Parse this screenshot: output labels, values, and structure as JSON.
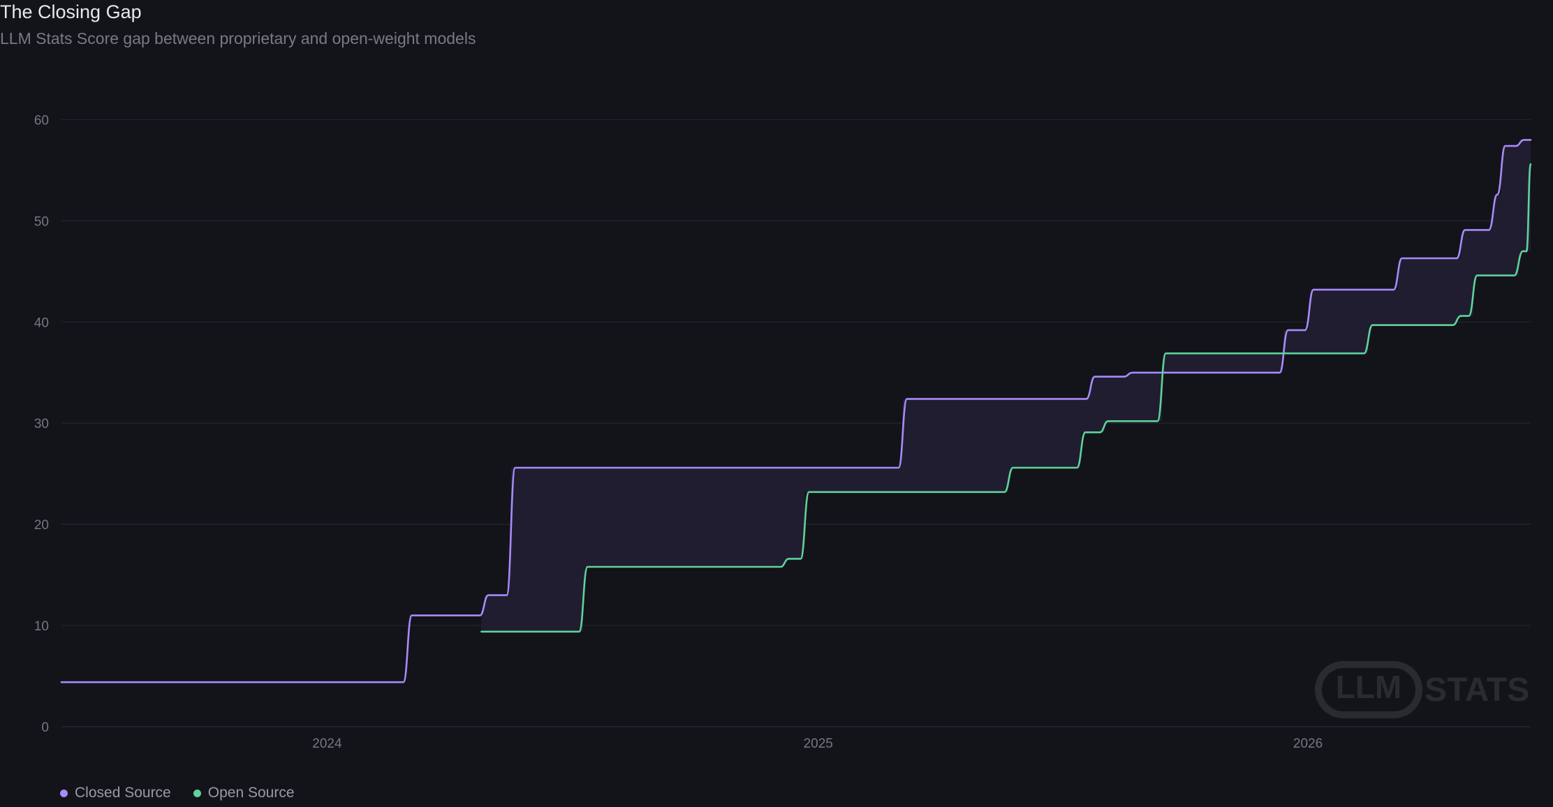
{
  "title": "The Closing Gap",
  "subtitle": "LLM Stats Score gap between proprietary and open-weight models",
  "watermark": {
    "llm": "LLM",
    "stats": "STATS"
  },
  "colors": {
    "background": "#13131a",
    "closed": "#a78bfa",
    "open": "#5ed39a",
    "grid": "#25252e",
    "gap_fill": "#231f33"
  },
  "chart_data": {
    "type": "line",
    "title": "The Closing Gap",
    "subtitle": "LLM Stats Score gap between proprietary and open-weight models",
    "xlabel": "",
    "ylabel": "",
    "ylim": [
      0,
      65
    ],
    "xlim": [
      "2023-06-17",
      "2026-06-16"
    ],
    "y_ticks": [
      0,
      10,
      20,
      30,
      40,
      50,
      60
    ],
    "x_ticks": [
      {
        "label": "2024",
        "date": "2024-01-01"
      },
      {
        "label": "2025",
        "date": "2025-01-01"
      },
      {
        "label": "2026",
        "date": "2026-01-01"
      }
    ],
    "grid": true,
    "legend_position": "bottom-left",
    "series": [
      {
        "name": "Closed Source",
        "color": "#a78bfa",
        "points": [
          {
            "date": "2023-06-17",
            "value": 4.4
          },
          {
            "date": "2024-03-01",
            "value": 11.0
          },
          {
            "date": "2024-04-27",
            "value": 13.0
          },
          {
            "date": "2024-05-17",
            "value": 25.6
          },
          {
            "date": "2025-03-05",
            "value": 32.4
          },
          {
            "date": "2025-07-23",
            "value": 34.6
          },
          {
            "date": "2025-08-20",
            "value": 35.0
          },
          {
            "date": "2025-12-14",
            "value": 39.2
          },
          {
            "date": "2026-01-02",
            "value": 43.2
          },
          {
            "date": "2026-03-09",
            "value": 46.3
          },
          {
            "date": "2026-04-25",
            "value": 49.1
          },
          {
            "date": "2026-05-19",
            "value": 52.6
          },
          {
            "date": "2026-05-25",
            "value": 57.4
          },
          {
            "date": "2026-06-08",
            "value": 58.0
          },
          {
            "date": "2026-06-16",
            "value": 58.0
          }
        ]
      },
      {
        "name": "Open Source",
        "color": "#5ed39a",
        "points": [
          {
            "date": "2024-04-25",
            "value": 9.4
          },
          {
            "date": "2024-07-10",
            "value": 15.8
          },
          {
            "date": "2024-12-07",
            "value": 16.6
          },
          {
            "date": "2024-12-22",
            "value": 23.2
          },
          {
            "date": "2025-05-23",
            "value": 25.6
          },
          {
            "date": "2025-07-16",
            "value": 29.1
          },
          {
            "date": "2025-08-02",
            "value": 30.2
          },
          {
            "date": "2025-09-14",
            "value": 36.9
          },
          {
            "date": "2026-02-15",
            "value": 39.7
          },
          {
            "date": "2026-04-22",
            "value": 40.6
          },
          {
            "date": "2026-05-04",
            "value": 44.6
          },
          {
            "date": "2026-06-07",
            "value": 47.0
          },
          {
            "date": "2026-07-03",
            "value": 55.6
          },
          {
            "date": "2026-07-16",
            "value": 55.6
          }
        ]
      }
    ]
  },
  "legend": [
    {
      "label": "Closed Source",
      "color": "#a78bfa"
    },
    {
      "label": "Open Source",
      "color": "#5ed39a"
    }
  ]
}
